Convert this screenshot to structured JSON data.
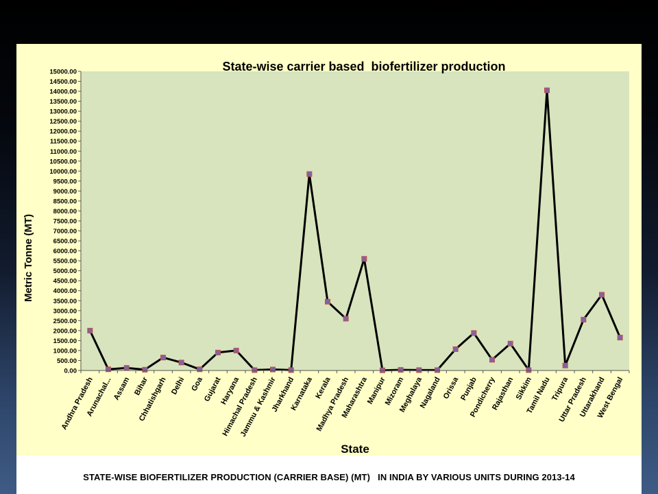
{
  "slide": {
    "caption": "STATE-WISE BIOFERTILIZER PRODUCTION (CARRIER BASE) (MT)   IN INDIA BY VARIOUS UNITS DURING 2013-14",
    "colors": {
      "panel": "#ffffc7",
      "plot_area": "#d7e4bd",
      "line": "#000000",
      "marker_fill": "#8064a2",
      "marker_edge": "#c0504d"
    }
  },
  "chart_data": {
    "type": "line",
    "title": "State-wise carrier based  biofertilizer production",
    "xlabel": "State",
    "ylabel": "Metric Tonne (MT)",
    "ylim": [
      0,
      15000
    ],
    "ytick_step": 500,
    "grid": false,
    "legend": "none",
    "categories": [
      "Andhra Pradesh",
      "Arunachal...",
      "Assam",
      "Bihar",
      "Chhatishgarh",
      "Delhi",
      "Goa",
      "Gujarat",
      "Haryana",
      "Himachal Pradesh",
      "Jammu & Kashmir",
      "Jharkhand",
      "Karnataka",
      "Kerala",
      "Madhya Pradesh",
      "Maharashtra",
      "Manipur",
      "Mizoram",
      "Meghalaya",
      "Nagaland",
      "Orissa",
      "Punjab",
      "Pondicherry",
      "Rajasthan",
      "Sikkim",
      "Tamil Nadu",
      "Tripura",
      "Uttar Pradesh",
      "Uttarakhand",
      "West Bengal"
    ],
    "series": [
      {
        "values": [
          2000,
          60,
          130,
          40,
          650,
          400,
          60,
          900,
          1000,
          20,
          50,
          20,
          9850,
          3450,
          2600,
          5600,
          10,
          30,
          20,
          20,
          1070,
          1880,
          540,
          1350,
          20,
          14050,
          250,
          2550,
          3800,
          1650
        ]
      }
    ]
  }
}
